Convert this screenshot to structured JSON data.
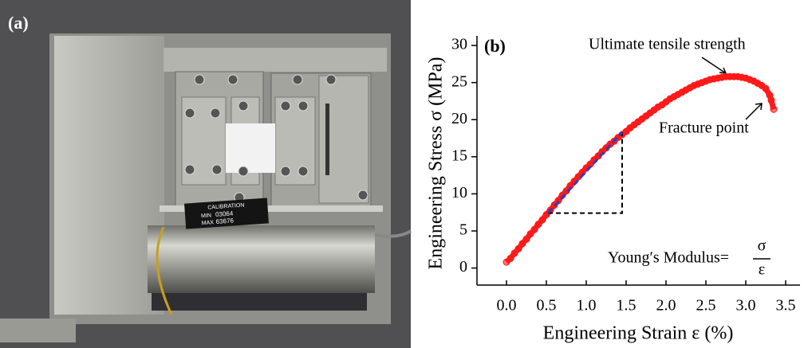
{
  "photo": {
    "label": "(a)",
    "plate": {
      "title": "CALIBRATION",
      "min_label": "MIN",
      "min": "03064",
      "max_label": "MAX",
      "max": "63676"
    }
  },
  "chart_data": {
    "type": "scatter",
    "panel_label": "(b)",
    "x_label": "Engineering Strain ε (%)",
    "y_label": "Engineering Stress σ (MPa)",
    "annotations": {
      "uts": "Ultimate tensile strength",
      "fracture": "Fracture point",
      "modulus": "Young′s Modulus=",
      "numerator": "σ",
      "denominator": "ε"
    },
    "color": "#ff1a1a",
    "x": [
      0.0,
      0.05,
      0.1,
      0.15,
      0.2,
      0.25,
      0.3,
      0.35,
      0.4,
      0.45,
      0.5,
      0.55,
      0.6,
      0.65,
      0.7,
      0.75,
      0.8,
      0.85,
      0.9,
      0.95,
      1.0,
      1.05,
      1.1,
      1.15,
      1.2,
      1.25,
      1.3,
      1.35,
      1.4,
      1.45,
      1.5,
      1.55,
      1.6,
      1.65,
      1.7,
      1.75,
      1.8,
      1.85,
      1.9,
      1.95,
      2.0,
      2.05,
      2.1,
      2.15,
      2.2,
      2.25,
      2.3,
      2.35,
      2.4,
      2.45,
      2.5,
      2.55,
      2.6,
      2.65,
      2.7,
      2.75,
      2.8,
      2.85,
      2.9,
      2.95,
      3.0,
      3.05,
      3.1,
      3.15,
      3.2,
      3.25,
      3.3,
      3.32,
      3.35
    ],
    "values": [
      0.8,
      1.3,
      2.0,
      2.6,
      3.3,
      3.9,
      4.6,
      5.2,
      5.9,
      6.5,
      7.2,
      7.8,
      8.5,
      9.1,
      9.8,
      10.4,
      11.1,
      11.7,
      12.3,
      12.9,
      13.5,
      14.0,
      14.6,
      15.1,
      15.7,
      16.2,
      16.7,
      17.1,
      17.6,
      18.0,
      18.4,
      18.9,
      19.3,
      19.7,
      20.1,
      20.5,
      20.9,
      21.3,
      21.7,
      22.0,
      22.4,
      22.8,
      23.1,
      23.4,
      23.7,
      24.0,
      24.3,
      24.6,
      24.8,
      25.0,
      25.2,
      25.4,
      25.5,
      25.6,
      25.7,
      25.8,
      25.8,
      25.8,
      25.8,
      25.7,
      25.6,
      25.4,
      25.2,
      24.9,
      24.6,
      24.2,
      23.3,
      22.6,
      21.4
    ],
    "fit": {
      "color": "#2a3fc0",
      "x": [
        0.52,
        1.45
      ],
      "y": [
        7.4,
        18.3
      ]
    },
    "xlim": [
      -0.37,
      3.68
    ],
    "ylim": [
      -2.3,
      31.3
    ],
    "xticks": [
      {
        "value": 0,
        "label": "0.0"
      },
      0.5,
      {
        "value": 1,
        "label": "1.0"
      },
      1.5,
      {
        "value": 2,
        "label": "2.0"
      },
      2.5,
      {
        "value": 3,
        "label": "3.0"
      },
      3.5
    ],
    "yticks": [
      0,
      5,
      10,
      15,
      20,
      25,
      30
    ]
  }
}
